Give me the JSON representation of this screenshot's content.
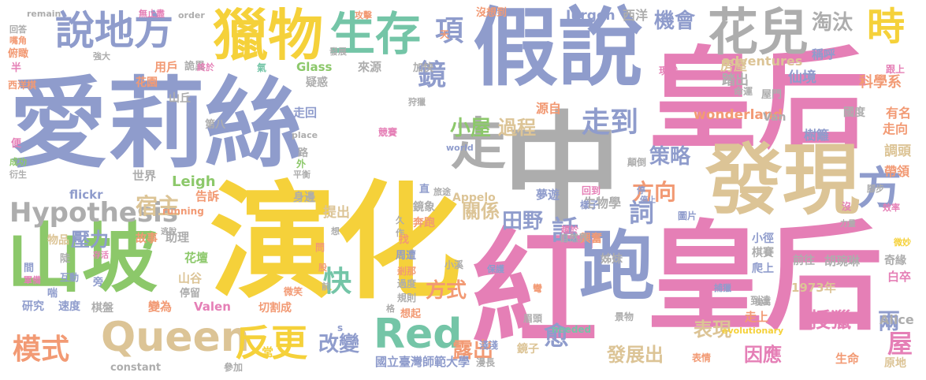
{
  "palette": {
    "pink": "#e57fb6",
    "blue": "#8f9ccc",
    "yellow": "#f5d13a",
    "tan": "#dcc496",
    "green": "#8cc86a",
    "gray": "#adadad",
    "teal": "#74c5a7",
    "orange": "#f29a74"
  },
  "words": [
    {
      "text": "愛莉絲",
      "color": "blue"
    },
    {
      "text": "皇后",
      "color": "pink"
    },
    {
      "text": "皇后",
      "color": "pink"
    },
    {
      "text": "演化",
      "color": "yellow"
    },
    {
      "text": "假說",
      "color": "blue"
    },
    {
      "text": "紅",
      "color": "pink"
    },
    {
      "text": "中",
      "color": "gray"
    },
    {
      "text": "走",
      "color": "gray"
    },
    {
      "text": "山坡",
      "color": "green"
    },
    {
      "text": "跑",
      "color": "blue"
    },
    {
      "text": "發現",
      "color": "tan"
    },
    {
      "text": "獵物",
      "color": "yellow"
    },
    {
      "text": "花兒",
      "color": "gray"
    },
    {
      "text": "生存",
      "color": "teal"
    },
    {
      "text": "說地方",
      "color": "blue"
    },
    {
      "text": "Queen",
      "color": "tan"
    },
    {
      "text": "Hypothesis",
      "color": "gray"
    },
    {
      "text": "Red",
      "color": "teal"
    },
    {
      "text": "反更",
      "color": "yellow"
    },
    {
      "text": "方",
      "color": "blue"
    },
    {
      "text": "時",
      "color": "yellow"
    },
    {
      "text": "模式",
      "color": "orange"
    },
    {
      "text": "快",
      "color": "teal"
    },
    {
      "text": "淘汰",
      "color": "gray"
    },
    {
      "text": "機會",
      "color": "blue"
    },
    {
      "text": "項",
      "color": "blue"
    },
    {
      "text": "鏡",
      "color": "blue"
    },
    {
      "text": "小屋",
      "color": "green"
    },
    {
      "text": "過程",
      "color": "tan"
    },
    {
      "text": "走到",
      "color": "blue"
    },
    {
      "text": "策略",
      "color": "blue"
    },
    {
      "text": "方向",
      "color": "orange"
    },
    {
      "text": "詞",
      "color": "blue"
    },
    {
      "text": "話",
      "color": "blue"
    },
    {
      "text": "田野",
      "color": "blue"
    },
    {
      "text": "關係",
      "color": "tan"
    },
    {
      "text": "改變",
      "color": "blue"
    },
    {
      "text": "露出",
      "color": "orange"
    },
    {
      "text": "愈",
      "color": "blue"
    },
    {
      "text": "授獵",
      "color": "pink"
    },
    {
      "text": "方式",
      "color": "orange"
    },
    {
      "text": "兩",
      "color": "blue"
    },
    {
      "text": "屋",
      "color": "pink"
    },
    {
      "text": "宿主",
      "color": "tan"
    },
    {
      "text": "壓力",
      "color": "blue"
    },
    {
      "text": "因應",
      "color": "pink"
    },
    {
      "text": "表現",
      "color": "tan"
    },
    {
      "text": "發展出",
      "color": "tan"
    },
    {
      "text": "Leigh",
      "color": "green"
    },
    {
      "text": "Jurgen",
      "color": "blue"
    },
    {
      "text": "西洋",
      "color": "gray"
    },
    {
      "text": "房屋",
      "color": "tan"
    },
    {
      "text": "踏出",
      "color": "gray"
    },
    {
      "text": "仙境",
      "color": "blue"
    },
    {
      "text": "科學系",
      "color": "orange"
    },
    {
      "text": "wonderland",
      "color": "orange"
    },
    {
      "text": "adventures",
      "color": "tan"
    },
    {
      "text": "稱呼",
      "color": "blue"
    },
    {
      "text": "國度",
      "color": "gray"
    },
    {
      "text": "有名",
      "color": "orange"
    },
    {
      "text": "走向",
      "color": "orange"
    },
    {
      "text": "調頭",
      "color": "tan"
    },
    {
      "text": "帶領",
      "color": "orange"
    },
    {
      "text": "樹籬",
      "color": "blue"
    },
    {
      "text": "屋門",
      "color": "gray"
    },
    {
      "text": "命運",
      "color": "gray"
    },
    {
      "text": "源自",
      "color": "orange"
    },
    {
      "text": "來源",
      "color": "gray"
    },
    {
      "text": "加快",
      "color": "gray"
    },
    {
      "text": "Glass",
      "color": "green"
    },
    {
      "text": "疑惑",
      "color": "gray"
    },
    {
      "text": "用戶",
      "color": "orange"
    },
    {
      "text": "詭異",
      "color": "gray"
    },
    {
      "text": "花園",
      "color": "orange"
    },
    {
      "text": "山丘",
      "color": "gray"
    },
    {
      "text": "走回",
      "color": "blue"
    },
    {
      "text": "第八",
      "color": "gray"
    },
    {
      "text": "世界",
      "color": "gray"
    },
    {
      "text": "告訴",
      "color": "orange"
    },
    {
      "text": "flickr",
      "color": "blue"
    },
    {
      "text": "running",
      "color": "orange"
    },
    {
      "text": "生物學",
      "color": "gray"
    },
    {
      "text": "Appelo",
      "color": "tan"
    },
    {
      "text": "鏡象",
      "color": "gray"
    },
    {
      "text": "奔跑",
      "color": "orange"
    },
    {
      "text": "身邊",
      "color": "gray"
    },
    {
      "text": "提出",
      "color": "tan"
    },
    {
      "text": "助理",
      "color": "gray"
    },
    {
      "text": "花壇",
      "color": "green"
    },
    {
      "text": "山谷",
      "color": "tan"
    },
    {
      "text": "停留",
      "color": "gray"
    },
    {
      "text": "故事",
      "color": "orange"
    },
    {
      "text": "物品",
      "color": "tan"
    },
    {
      "text": "研究",
      "color": "blue"
    },
    {
      "text": "速度",
      "color": "blue"
    },
    {
      "text": "棋盤",
      "color": "gray"
    },
    {
      "text": "變為",
      "color": "orange"
    },
    {
      "text": "Valen",
      "color": "pink"
    },
    {
      "text": "切割成",
      "color": "orange"
    },
    {
      "text": "常",
      "color": "yellow"
    },
    {
      "text": "參加",
      "color": "gray"
    },
    {
      "text": "constant",
      "color": "gray"
    },
    {
      "text": "國立臺灣師範大學",
      "color": "blue"
    },
    {
      "text": "淺淺",
      "color": "blue"
    },
    {
      "text": "鏡子",
      "color": "tan"
    },
    {
      "text": "表情",
      "color": "orange"
    },
    {
      "text": "生命",
      "color": "orange"
    },
    {
      "text": "原地",
      "color": "tan"
    },
    {
      "text": "走上",
      "color": "orange"
    },
    {
      "text": "景物",
      "color": "gray"
    },
    {
      "text": "眉頭",
      "color": "gray"
    },
    {
      "text": "needed",
      "color": "teal"
    },
    {
      "text": "evolutionary",
      "color": "yellow"
    },
    {
      "text": "Alice",
      "color": "gray"
    },
    {
      "text": "白卒",
      "color": "pink"
    },
    {
      "text": "奇緣",
      "color": "gray"
    },
    {
      "text": "胡琬琳",
      "color": "gray"
    },
    {
      "text": "前往",
      "color": "gray"
    },
    {
      "text": "爬上",
      "color": "blue"
    },
    {
      "text": "棋賽",
      "color": "gray"
    },
    {
      "text": "小徑",
      "color": "blue"
    },
    {
      "text": "1973年",
      "color": "tan"
    },
    {
      "text": "到達",
      "color": "gray"
    },
    {
      "text": "姊妹",
      "color": "gray"
    },
    {
      "text": "興奮",
      "color": "orange"
    },
    {
      "text": "圖片",
      "color": "blue"
    },
    {
      "text": "自然界",
      "color": "gray"
    },
    {
      "text": "Van",
      "color": "gray"
    },
    {
      "text": "沒想到",
      "color": "orange"
    },
    {
      "text": "攻擊",
      "color": "orange"
    },
    {
      "text": "order",
      "color": "gray"
    },
    {
      "text": "無止盡",
      "color": "pink"
    },
    {
      "text": "remain",
      "color": "gray"
    },
    {
      "text": "回答",
      "color": "gray"
    },
    {
      "text": "嘴角",
      "color": "orange"
    },
    {
      "text": "俯瞰",
      "color": "orange"
    },
    {
      "text": "西洋棋",
      "color": "orange"
    },
    {
      "text": "半",
      "color": "pink"
    },
    {
      "text": "便",
      "color": "pink"
    },
    {
      "text": "成功",
      "color": "green"
    },
    {
      "text": "衍生",
      "color": "gray"
    },
    {
      "text": "間",
      "color": "blue"
    },
    {
      "text": "互動",
      "color": "blue"
    },
    {
      "text": "喘",
      "color": "blue"
    },
    {
      "text": "軍備",
      "color": "pink"
    },
    {
      "text": "旁",
      "color": "blue"
    },
    {
      "text": "陡",
      "color": "gray"
    },
    {
      "text": "存活",
      "color": "pink"
    },
    {
      "text": "逃脫",
      "color": "gray"
    },
    {
      "text": "強大",
      "color": "gray"
    },
    {
      "text": "終於",
      "color": "pink"
    },
    {
      "text": "氣",
      "color": "teal"
    },
    {
      "text": "天",
      "color": "orange"
    },
    {
      "text": "發展",
      "color": "gray"
    },
    {
      "text": "狩獵",
      "color": "gray"
    },
    {
      "text": "競賽",
      "color": "pink"
    },
    {
      "text": "world",
      "color": "blue"
    },
    {
      "text": "place",
      "color": "gray"
    },
    {
      "text": "現狀",
      "color": "pink"
    },
    {
      "text": "路",
      "color": "gray"
    },
    {
      "text": "外",
      "color": "green"
    },
    {
      "text": "平衡",
      "color": "gray"
    },
    {
      "text": "直",
      "color": "blue"
    },
    {
      "text": "旅途",
      "color": "gray"
    },
    {
      "text": "夢遊",
      "color": "blue"
    },
    {
      "text": "回到",
      "color": "pink"
    },
    {
      "text": "樣子",
      "color": "blue"
    },
    {
      "text": "顛倒",
      "color": "gray"
    },
    {
      "text": "停",
      "color": "blue"
    },
    {
      "text": "停止",
      "color": "blue"
    },
    {
      "text": "腳步",
      "color": "gray"
    },
    {
      "text": "跟上",
      "color": "pink"
    },
    {
      "text": "沒",
      "color": "pink"
    },
    {
      "text": "效率",
      "color": "pink"
    },
    {
      "text": "力量",
      "color": "gray"
    },
    {
      "text": "微妙",
      "color": "yellow"
    },
    {
      "text": "想",
      "color": "gray"
    },
    {
      "text": "久",
      "color": "gray"
    },
    {
      "text": "作",
      "color": "gray"
    },
    {
      "text": "前",
      "color": "gray"
    },
    {
      "text": "問",
      "color": "orange"
    },
    {
      "text": "股",
      "color": "orange"
    },
    {
      "text": "找",
      "color": "orange"
    },
    {
      "text": "周遭",
      "color": "blue"
    },
    {
      "text": "剎那",
      "color": "orange"
    },
    {
      "text": "過度",
      "color": "gray"
    },
    {
      "text": "規則",
      "color": "gray"
    },
    {
      "text": "格",
      "color": "gray"
    },
    {
      "text": "想起",
      "color": "orange"
    },
    {
      "text": "小溪",
      "color": "gray"
    },
    {
      "text": "保護",
      "color": "blue"
    },
    {
      "text": "趨於",
      "color": "pink"
    },
    {
      "text": "彎",
      "color": "orange"
    },
    {
      "text": "捕獵",
      "color": "blue"
    },
    {
      "text": "提高",
      "color": "gray"
    },
    {
      "text": "微笑",
      "color": "orange"
    },
    {
      "text": "s",
      "color": "blue"
    },
    {
      "text": "漫長",
      "color": "gray"
    }
  ]
}
